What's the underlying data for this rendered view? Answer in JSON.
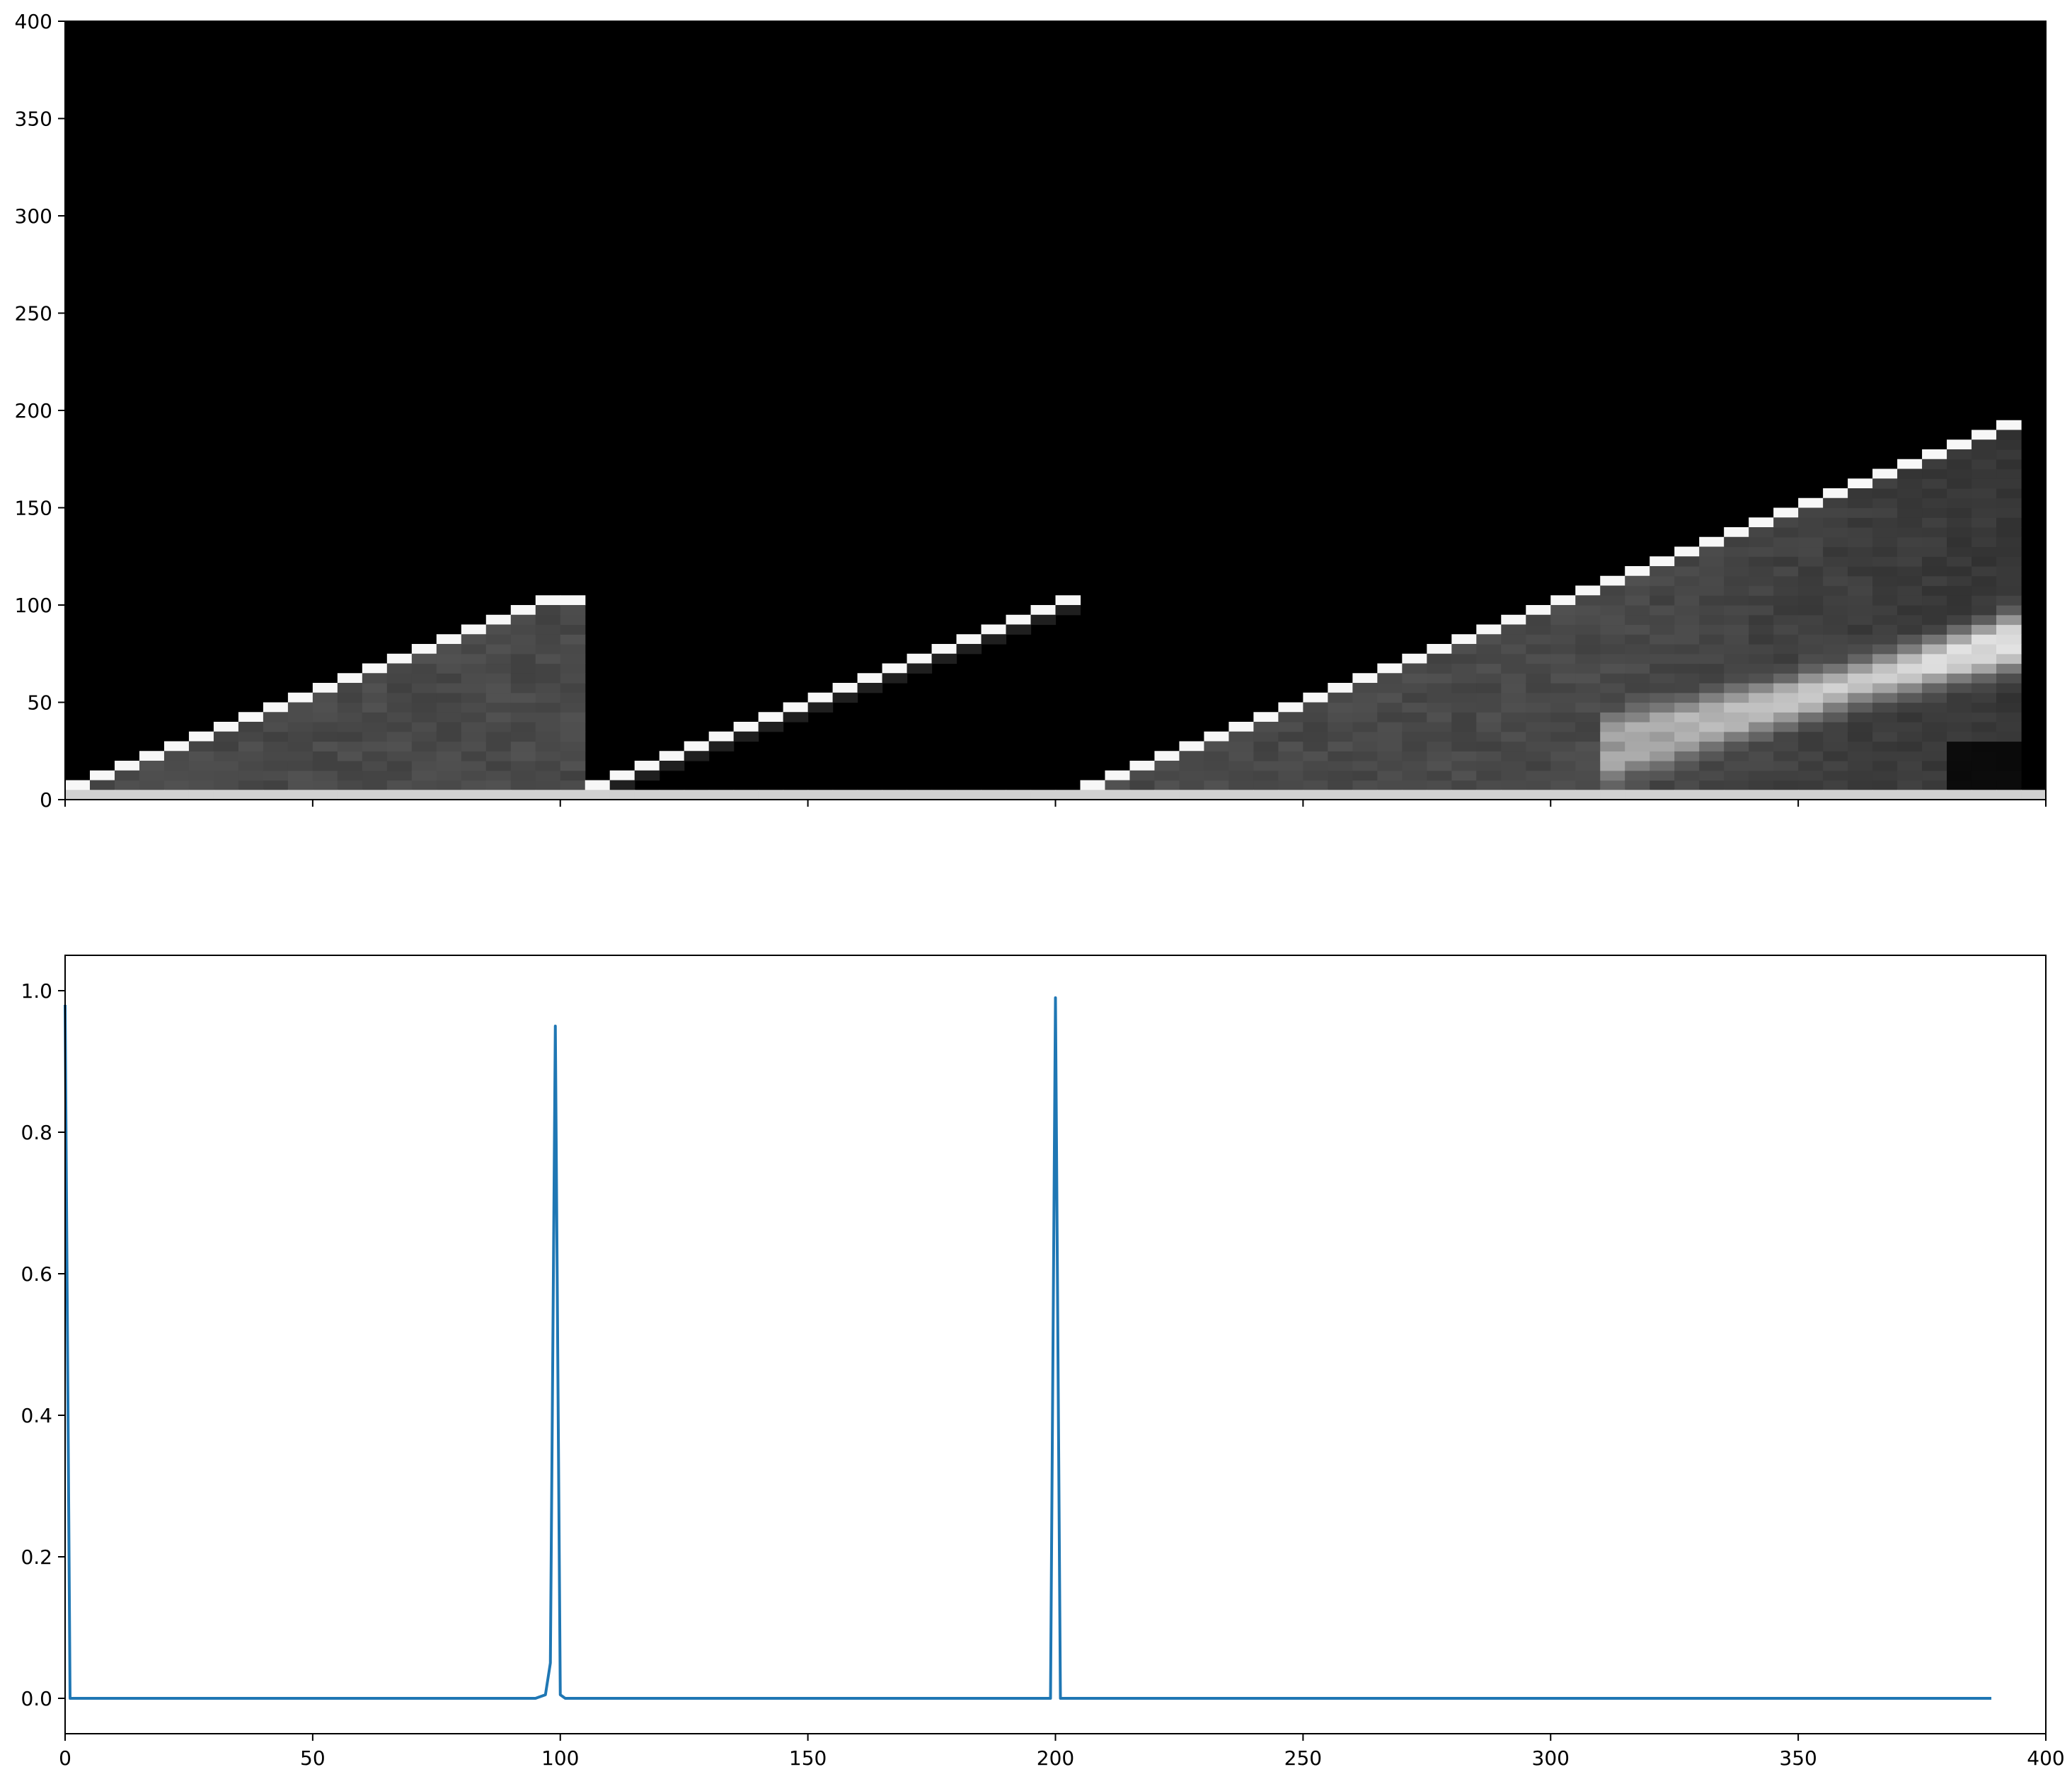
{
  "chart_data": [
    {
      "type": "heatmap",
      "colormap": "gray",
      "title": "",
      "xlabel": "",
      "ylabel": "",
      "xlim": [
        0,
        400
      ],
      "ylim": [
        0,
        400
      ],
      "x_ticks": [
        "0",
        "50",
        "100",
        "150",
        "200",
        "250",
        "300",
        "350",
        "400"
      ],
      "y_ticks": [
        "0",
        "50",
        "100",
        "150",
        "200",
        "250",
        "300",
        "350",
        "400"
      ],
      "show_x_ticklabels": false,
      "segments": [
        {
          "x_start": 0,
          "x_end": 105,
          "y_end": 105,
          "fill": "filled",
          "bright_band": "none"
        },
        {
          "x_start": 105,
          "x_end": 205,
          "y_end": 105,
          "fill": "diagonal-only",
          "bright_band": "none"
        },
        {
          "x_start": 205,
          "x_end": 395,
          "y_end": 195,
          "fill": "filled",
          "bright_band": "upper-right"
        }
      ],
      "bottom_row": {
        "y": 0,
        "level": 0.82
      }
    },
    {
      "type": "line",
      "title": "",
      "xlabel": "",
      "ylabel": "",
      "xlim": [
        0,
        400
      ],
      "ylim": [
        -0.05,
        1.05
      ],
      "x_ticks": [
        "0",
        "50",
        "100",
        "150",
        "200",
        "250",
        "300",
        "350",
        "400"
      ],
      "y_ticks": [
        "0.0",
        "0.2",
        "0.4",
        "0.6",
        "0.8",
        "1.0"
      ],
      "color": "#1f77b4",
      "series": [
        {
          "x": [
            0,
            1,
            90,
            95,
            97,
            98,
            99,
            100,
            101,
            102,
            199,
            200,
            201,
            202,
            389
          ],
          "y": [
            0.98,
            0.0,
            0.0,
            0.0,
            0.005,
            0.05,
            0.95,
            0.005,
            0.0,
            0.0,
            0.0,
            0.99,
            0.0,
            0.0,
            0.0
          ]
        }
      ]
    }
  ]
}
